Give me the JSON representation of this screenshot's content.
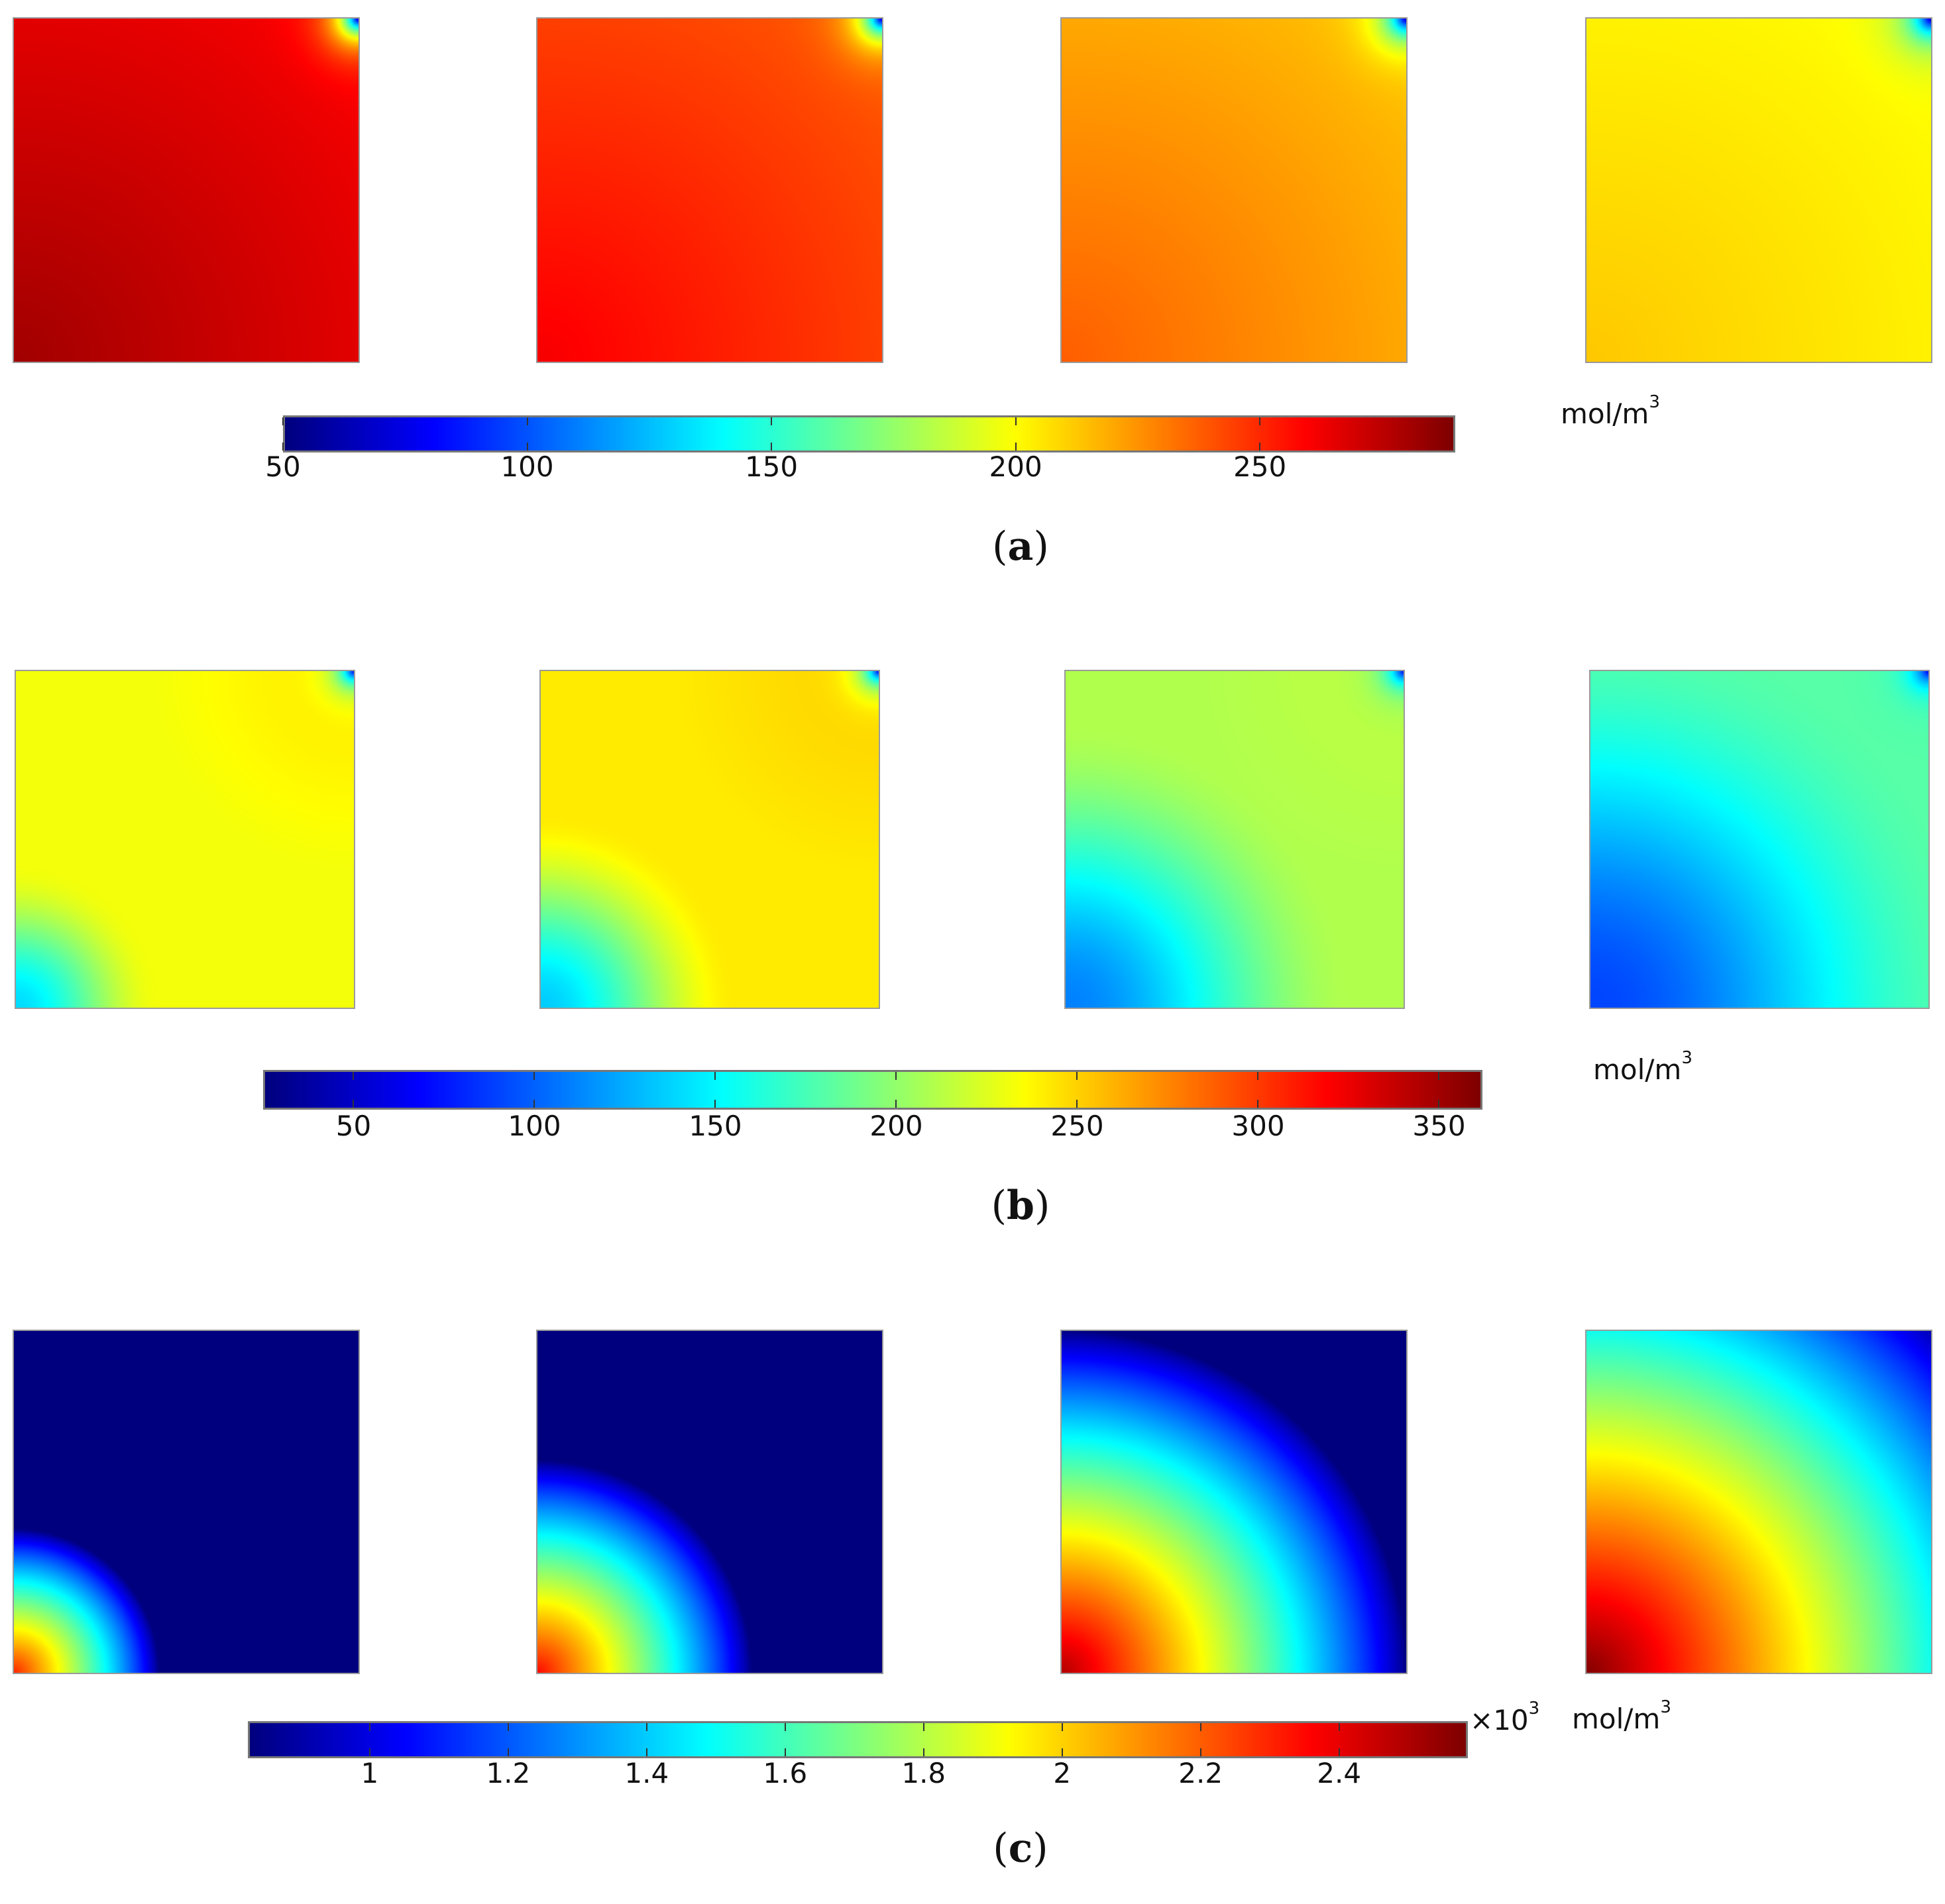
{
  "chart_data": [
    {
      "type": "heatmap",
      "panel_label": "a",
      "unit": "mol/m",
      "unit_exponent": "3",
      "colormap": "jet",
      "color_range": [
        50,
        290
      ],
      "colorbar_ticks": [
        "50",
        "100",
        "150",
        "200",
        "250"
      ],
      "colorbar_tick_values": [
        50,
        100,
        150,
        200,
        250
      ],
      "snapshots": [
        {
          "bottom_left_value": 282,
          "top_right_value": 262
        },
        {
          "bottom_left_value": 262,
          "top_right_value": 240
        },
        {
          "bottom_left_value": 238,
          "top_right_value": 215
        },
        {
          "bottom_left_value": 213,
          "top_right_value": 200
        }
      ]
    },
    {
      "type": "heatmap",
      "panel_label": "b",
      "unit": "mol/m",
      "unit_exponent": "3",
      "colormap": "jet",
      "color_range": [
        25,
        362
      ],
      "colorbar_ticks": [
        "50",
        "100",
        "150",
        "200",
        "250",
        "300",
        "350"
      ],
      "colorbar_tick_values": [
        50,
        100,
        150,
        200,
        250,
        300,
        350
      ],
      "snapshots": [
        {
          "bottom_left_value": 140,
          "far_value": 232,
          "top_right_value": 245
        },
        {
          "bottom_left_value": 135,
          "far_value": 242,
          "top_right_value": 252
        },
        {
          "bottom_left_value": 110,
          "far_value": 210,
          "top_right_value": 215
        },
        {
          "bottom_left_value": 90,
          "far_value": 180,
          "top_right_value": 180
        }
      ]
    },
    {
      "type": "heatmap",
      "panel_label": "c",
      "unit": "mol/m",
      "unit_exponent": "3",
      "multiplier": "×10",
      "multiplier_exponent": "3",
      "colormap": "jet",
      "color_range": [
        0.824,
        2.586
      ],
      "colorbar_ticks": [
        "1",
        "1.2",
        "1.4",
        "1.6",
        "1.8",
        "2",
        "2.2",
        "2.4"
      ],
      "colorbar_tick_values": [
        1,
        1.2,
        1.4,
        1.6,
        1.8,
        2,
        2.2,
        2.4
      ],
      "snapshots": [
        {
          "bottom_left_value": 2.3,
          "background_value": 0.824
        },
        {
          "bottom_left_value": 2.35,
          "background_value": 0.824
        },
        {
          "bottom_left_value": 2.5,
          "background_value": 0.824
        },
        {
          "bottom_left_value": 2.58,
          "background_value": 0.824
        }
      ]
    }
  ]
}
